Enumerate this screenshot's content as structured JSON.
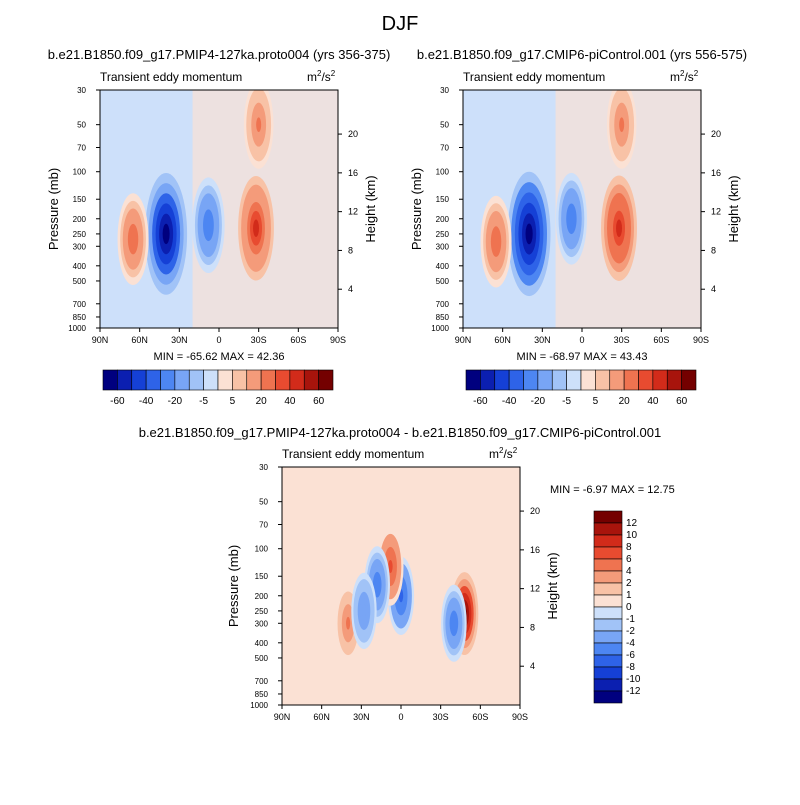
{
  "figure": {
    "title": "DJF",
    "panel_label": "Transient eddy momentum",
    "units": "m²/s²",
    "min_label": "MIN",
    "max_label": "MAX",
    "ylabel_left": "Pressure (mb)",
    "ylabel_right": "Height (km)"
  },
  "chart_data": [
    {
      "type": "heatmap",
      "title": "b.e21.B1850.f09_g17.PMIP4-127ka.proto004 (yrs 356-375)",
      "subtitle": "Transient eddy momentum",
      "units": "m²/s²",
      "xlabel": "",
      "ylabel": "Pressure (mb)",
      "ylabel_right": "Height (km)",
      "x_ticks": [
        "90N",
        "60N",
        "30N",
        "0",
        "30S",
        "60S",
        "90S"
      ],
      "y_ticks": [
        "30",
        "50",
        "70",
        "100",
        "150",
        "200",
        "250",
        "300",
        "400",
        "500",
        "700",
        "850",
        "1000"
      ],
      "y2_ticks": [
        "20",
        "16",
        "12",
        "8",
        "4"
      ],
      "min": "-65.62",
      "max": "42.36",
      "colorbar_ticks": [
        "-60",
        "-40",
        "-20",
        "-5",
        "5",
        "20",
        "40",
        "60"
      ],
      "levels": [
        -70,
        -60,
        -50,
        -40,
        -30,
        -20,
        -10,
        -5,
        0,
        5,
        10,
        20,
        30,
        40,
        50,
        60,
        70
      ],
      "features": [
        {
          "lat": 40,
          "p": 250,
          "value": -65.62
        },
        {
          "lat": -28,
          "p": 230,
          "value": 42.36
        },
        {
          "lat": 65,
          "p": 270,
          "value": 25
        },
        {
          "lat": -30,
          "p": 50,
          "value": 20
        },
        {
          "lat": 8,
          "p": 220,
          "value": -30
        }
      ]
    },
    {
      "type": "heatmap",
      "title": "b.e21.B1850.f09_g17.CMIP6-piControl.001 (yrs 556-575)",
      "subtitle": "Transient eddy momentum",
      "units": "m²/s²",
      "xlabel": "",
      "ylabel": "Pressure (mb)",
      "ylabel_right": "Height (km)",
      "x_ticks": [
        "90N",
        "60N",
        "30N",
        "0",
        "30S",
        "60S",
        "90S"
      ],
      "y_ticks": [
        "30",
        "50",
        "70",
        "100",
        "150",
        "200",
        "250",
        "300",
        "400",
        "500",
        "700",
        "850",
        "1000"
      ],
      "y2_ticks": [
        "20",
        "16",
        "12",
        "8",
        "4"
      ],
      "min": "-68.97",
      "max": "43.43",
      "colorbar_ticks": [
        "-60",
        "-40",
        "-20",
        "-5",
        "5",
        "20",
        "40",
        "60"
      ],
      "levels": [
        -70,
        -60,
        -50,
        -40,
        -30,
        -20,
        -10,
        -5,
        0,
        5,
        10,
        20,
        30,
        40,
        50,
        60,
        70
      ],
      "features": [
        {
          "lat": 40,
          "p": 250,
          "value": -68.97
        },
        {
          "lat": -28,
          "p": 230,
          "value": 43.43
        },
        {
          "lat": 65,
          "p": 280,
          "value": 25
        },
        {
          "lat": -30,
          "p": 50,
          "value": 20
        },
        {
          "lat": 8,
          "p": 200,
          "value": -25
        }
      ]
    },
    {
      "type": "heatmap",
      "title": "b.e21.B1850.f09_g17.PMIP4-127ka.proto004 - b.e21.B1850.f09_g17.CMIP6-piControl.001",
      "subtitle": "Transient eddy momentum",
      "units": "m²/s²",
      "xlabel": "",
      "ylabel": "Pressure (mb)",
      "ylabel_right": "Height (km)",
      "x_ticks": [
        "90N",
        "60N",
        "30N",
        "0",
        "30S",
        "60S",
        "90S"
      ],
      "y_ticks": [
        "30",
        "50",
        "70",
        "100",
        "150",
        "200",
        "250",
        "300",
        "400",
        "500",
        "700",
        "850",
        "1000"
      ],
      "y2_ticks": [
        "20",
        "16",
        "12",
        "8",
        "4"
      ],
      "min": "-6.97",
      "max": "12.75",
      "colorbar_ticks": [
        "12",
        "10",
        "8",
        "6",
        "4",
        "2",
        "1",
        "0",
        "-1",
        "-2",
        "-4",
        "-6",
        "-8",
        "-10",
        "-12"
      ],
      "levels": [
        -14,
        -12,
        -10,
        -8,
        -6,
        -4,
        -2,
        -1,
        0,
        1,
        2,
        4,
        6,
        8,
        10,
        12,
        14
      ],
      "features": [
        {
          "lat": -48,
          "p": 260,
          "value": 12.75
        },
        {
          "lat": -40,
          "p": 300,
          "value": -5
        },
        {
          "lat": 0,
          "p": 200,
          "value": -6.97
        },
        {
          "lat": 8,
          "p": 130,
          "value": 7
        },
        {
          "lat": 18,
          "p": 170,
          "value": -5
        },
        {
          "lat": 40,
          "p": 300,
          "value": 4
        },
        {
          "lat": 28,
          "p": 250,
          "value": -4
        }
      ]
    }
  ]
}
